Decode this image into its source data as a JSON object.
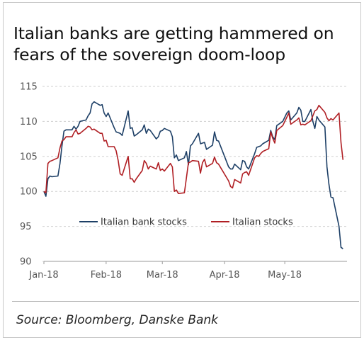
{
  "title": "Italian banks are getting hammered on fears of the sovereign doom-loop",
  "source": "Source: Bloomberg, Danske Bank",
  "chart_data": {
    "type": "line",
    "title": "Italian banks are getting hammered on fears of the sovereign doom-loop",
    "xlabel": "",
    "ylabel": "",
    "ylim": [
      90,
      115
    ],
    "yticks": [
      90,
      95,
      100,
      105,
      110,
      115
    ],
    "xlim": [
      "2018-01-01",
      "2018-06-01"
    ],
    "xticks": [
      {
        "date": "2018-01-01",
        "label": "Jan-18"
      },
      {
        "date": "2018-02-01",
        "label": "Feb-18"
      },
      {
        "date": "2018-03-01",
        "label": "Mar-18"
      },
      {
        "date": "2018-04-01",
        "label": "Apr-18"
      },
      {
        "date": "2018-05-01",
        "label": "May-18"
      }
    ],
    "grid": "horizontal",
    "legend_position": "lower-center",
    "series": [
      {
        "name": "Italian bank stocks",
        "color": "#1d3f66",
        "x": [
          "2018-01-01",
          "2018-01-02",
          "2018-01-03",
          "2018-01-04",
          "2018-01-05",
          "2018-01-08",
          "2018-01-09",
          "2018-01-10",
          "2018-01-11",
          "2018-01-12",
          "2018-01-15",
          "2018-01-16",
          "2018-01-17",
          "2018-01-18",
          "2018-01-19",
          "2018-01-22",
          "2018-01-23",
          "2018-01-24",
          "2018-01-25",
          "2018-01-26",
          "2018-01-29",
          "2018-01-30",
          "2018-01-31",
          "2018-02-01",
          "2018-02-02",
          "2018-02-05",
          "2018-02-06",
          "2018-02-07",
          "2018-02-08",
          "2018-02-09",
          "2018-02-12",
          "2018-02-13",
          "2018-02-14",
          "2018-02-15",
          "2018-02-16",
          "2018-02-19",
          "2018-02-20",
          "2018-02-21",
          "2018-02-22",
          "2018-02-23",
          "2018-02-26",
          "2018-02-27",
          "2018-02-28",
          "2018-03-01",
          "2018-03-02",
          "2018-03-05",
          "2018-03-06",
          "2018-03-07",
          "2018-03-08",
          "2018-03-09",
          "2018-03-12",
          "2018-03-13",
          "2018-03-14",
          "2018-03-15",
          "2018-03-16",
          "2018-03-19",
          "2018-03-20",
          "2018-03-21",
          "2018-03-22",
          "2018-03-23",
          "2018-03-26",
          "2018-03-27",
          "2018-03-28",
          "2018-03-29",
          "2018-04-03",
          "2018-04-04",
          "2018-04-05",
          "2018-04-06",
          "2018-04-09",
          "2018-04-10",
          "2018-04-11",
          "2018-04-12",
          "2018-04-13",
          "2018-04-16",
          "2018-04-17",
          "2018-04-18",
          "2018-04-19",
          "2018-04-20",
          "2018-04-23",
          "2018-04-24",
          "2018-04-25",
          "2018-04-26",
          "2018-04-27",
          "2018-04-30",
          "2018-05-02",
          "2018-05-03",
          "2018-05-04",
          "2018-05-07",
          "2018-05-08",
          "2018-05-09",
          "2018-05-10",
          "2018-05-11",
          "2018-05-14",
          "2018-05-15",
          "2018-05-16",
          "2018-05-17",
          "2018-05-18",
          "2018-05-21",
          "2018-05-22",
          "2018-05-23",
          "2018-05-24",
          "2018-05-25",
          "2018-05-28",
          "2018-05-29",
          "2018-05-30"
        ],
        "values": [
          100,
          99.3,
          101.8,
          102.2,
          102.1,
          102.2,
          104,
          106.5,
          108.6,
          108.8,
          108.8,
          109.3,
          108.9,
          109.3,
          110,
          110.2,
          110.8,
          111.2,
          112.5,
          112.8,
          112.3,
          112.4,
          111.2,
          110.7,
          111.2,
          109.1,
          108.5,
          108.4,
          108.3,
          108,
          111.5,
          109,
          109.1,
          107.9,
          108.1,
          108.8,
          109.5,
          108.3,
          108.9,
          108.7,
          107.5,
          107.8,
          108.6,
          108.7,
          109,
          108.6,
          107.8,
          104.8,
          105.2,
          104.4,
          104.8,
          105.7,
          103.8,
          106.5,
          106.8,
          108.3,
          106.8,
          106.9,
          107,
          106,
          106.6,
          108.5,
          107.3,
          107.2,
          103.5,
          103.2,
          103.2,
          103.9,
          103.1,
          104.4,
          104.3,
          103.5,
          103.2,
          105.4,
          106.3,
          106.4,
          106.5,
          106.8,
          107.3,
          108.7,
          107.8,
          107.4,
          109.4,
          110,
          111.2,
          111.5,
          110.2,
          111.2,
          112,
          111.6,
          110,
          110,
          111.7,
          110,
          109,
          110.7,
          110.2,
          109.2,
          103.5,
          101,
          99.2,
          99.1,
          95,
          92,
          91.8
        ]
      },
      {
        "name": "Italian stocks",
        "color": "#b01f24",
        "x": [
          "2018-01-01",
          "2018-01-02",
          "2018-01-03",
          "2018-01-04",
          "2018-01-05",
          "2018-01-08",
          "2018-01-09",
          "2018-01-10",
          "2018-01-11",
          "2018-01-12",
          "2018-01-15",
          "2018-01-16",
          "2018-01-17",
          "2018-01-18",
          "2018-01-19",
          "2018-01-22",
          "2018-01-23",
          "2018-01-24",
          "2018-01-25",
          "2018-01-26",
          "2018-01-29",
          "2018-01-30",
          "2018-01-31",
          "2018-02-01",
          "2018-02-02",
          "2018-02-05",
          "2018-02-06",
          "2018-02-07",
          "2018-02-08",
          "2018-02-09",
          "2018-02-12",
          "2018-02-13",
          "2018-02-14",
          "2018-02-15",
          "2018-02-16",
          "2018-02-19",
          "2018-02-20",
          "2018-02-21",
          "2018-02-22",
          "2018-02-23",
          "2018-02-26",
          "2018-02-27",
          "2018-02-28",
          "2018-03-01",
          "2018-03-02",
          "2018-03-05",
          "2018-03-06",
          "2018-03-07",
          "2018-03-08",
          "2018-03-09",
          "2018-03-12",
          "2018-03-13",
          "2018-03-14",
          "2018-03-15",
          "2018-03-16",
          "2018-03-19",
          "2018-03-20",
          "2018-03-21",
          "2018-03-22",
          "2018-03-23",
          "2018-03-26",
          "2018-03-27",
          "2018-03-28",
          "2018-03-29",
          "2018-04-03",
          "2018-04-04",
          "2018-04-05",
          "2018-04-06",
          "2018-04-09",
          "2018-04-10",
          "2018-04-11",
          "2018-04-12",
          "2018-04-13",
          "2018-04-16",
          "2018-04-17",
          "2018-04-18",
          "2018-04-19",
          "2018-04-20",
          "2018-04-23",
          "2018-04-24",
          "2018-04-25",
          "2018-04-26",
          "2018-04-27",
          "2018-04-30",
          "2018-05-02",
          "2018-05-03",
          "2018-05-04",
          "2018-05-07",
          "2018-05-08",
          "2018-05-09",
          "2018-05-10",
          "2018-05-11",
          "2018-05-14",
          "2018-05-15",
          "2018-05-16",
          "2018-05-17",
          "2018-05-18",
          "2018-05-21",
          "2018-05-22",
          "2018-05-23",
          "2018-05-24",
          "2018-05-25",
          "2018-05-28",
          "2018-05-29",
          "2018-05-30"
        ],
        "values": [
          100,
          99.8,
          104,
          104.3,
          104.4,
          104.8,
          106.2,
          107.2,
          107.4,
          107.8,
          107.8,
          108.4,
          108.8,
          108.2,
          108.3,
          109,
          109.3,
          109.2,
          108.8,
          108.9,
          108.3,
          108.3,
          107.2,
          107.3,
          106.4,
          106.4,
          105.8,
          104.4,
          102.5,
          102.3,
          105,
          101.8,
          101.8,
          101.3,
          101.8,
          103,
          104.4,
          104,
          103.2,
          103.6,
          103.2,
          104.1,
          103,
          103.2,
          102.9,
          104,
          103.5,
          100,
          100.2,
          99.7,
          99.8,
          101.9,
          104.1,
          104.2,
          104.4,
          104.3,
          102.6,
          104.1,
          104.6,
          103.5,
          104,
          104.9,
          104.1,
          103.9,
          101.5,
          100.7,
          100.5,
          101.7,
          101.2,
          102.5,
          102.7,
          102.8,
          102.3,
          104.8,
          105.1,
          105,
          105.4,
          105.7,
          106.1,
          108.5,
          107.6,
          106.9,
          108.7,
          109.4,
          110.6,
          111.2,
          109.6,
          110.2,
          110.5,
          109.5,
          109.6,
          109.5,
          110.1,
          110.8,
          111.5,
          111.7,
          112.3,
          111.3,
          110.5,
          110.1,
          110.4,
          110.2,
          111.2,
          107,
          104.5
        ]
      }
    ]
  }
}
